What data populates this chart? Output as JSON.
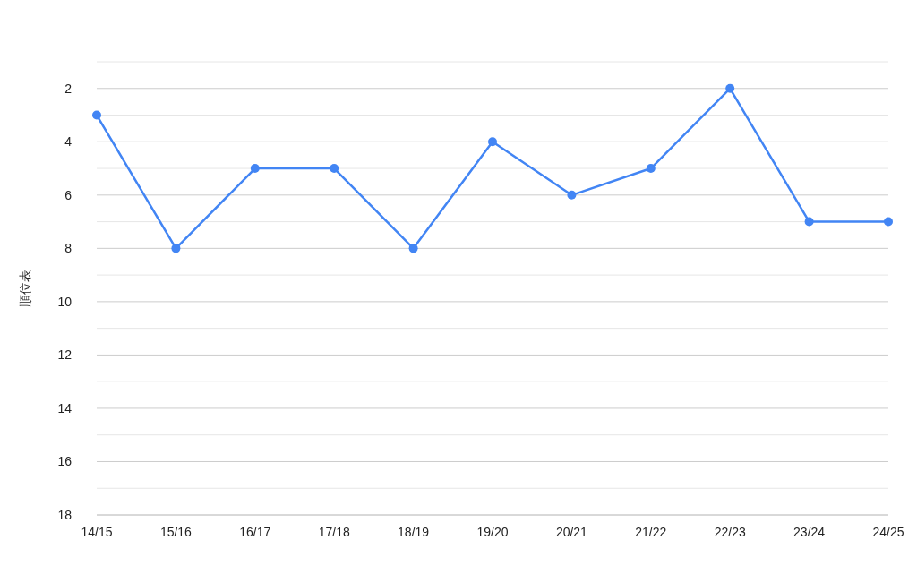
{
  "chart_data": {
    "type": "line",
    "ylabel": "順位表",
    "categories": [
      "14/15",
      "15/16",
      "16/17",
      "17/18",
      "18/19",
      "19/20",
      "20/21",
      "21/22",
      "22/23",
      "23/24",
      "24/25"
    ],
    "series": [
      {
        "color": "#4285f4",
        "values": [
          3,
          8,
          5,
          5,
          8,
          4,
          6,
          5,
          2,
          7,
          7
        ]
      }
    ],
    "ylim": [
      18,
      1
    ],
    "yticks": [
      {
        "value": 1,
        "label": null
      },
      2,
      {
        "value": 3,
        "label": null
      },
      4,
      {
        "value": 5,
        "label": null
      },
      6,
      {
        "value": 7,
        "label": null
      },
      8,
      {
        "value": 9,
        "label": null
      },
      10,
      {
        "value": 11,
        "label": null
      },
      12,
      {
        "value": 13,
        "label": null
      },
      14,
      {
        "value": 15,
        "label": null
      },
      16,
      {
        "value": 17,
        "label": null
      },
      18
    ],
    "grid": "y",
    "marker": "circle",
    "line_style": "solid",
    "legend": false
  }
}
